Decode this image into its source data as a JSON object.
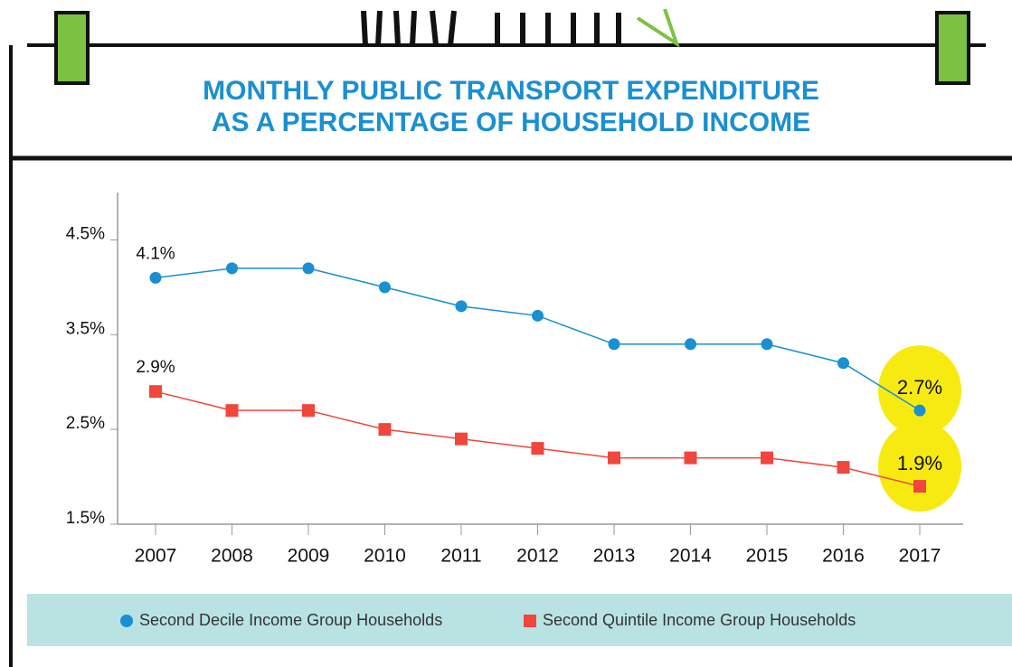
{
  "chart_data": {
    "type": "line",
    "title": [
      "MONTHLY PUBLIC TRANSPORT EXPENDITURE",
      "AS A PERCENTAGE OF HOUSEHOLD INCOME"
    ],
    "categories": [
      "2007",
      "2008",
      "2009",
      "2010",
      "2011",
      "2012",
      "2013",
      "2014",
      "2015",
      "2016",
      "2017"
    ],
    "series": [
      {
        "name": "Second Decile Income Group Households",
        "color": "#1a8fd1",
        "marker": "circle",
        "values": [
          4.1,
          4.2,
          4.2,
          4.0,
          3.8,
          3.7,
          3.4,
          3.4,
          3.4,
          3.2,
          2.7
        ],
        "value_labels": [
          "4.1%",
          null,
          null,
          null,
          null,
          null,
          null,
          null,
          null,
          null,
          "2.7%"
        ]
      },
      {
        "name": "Second Quintile Income Group Households",
        "color": "#f0463c",
        "marker": "square",
        "values": [
          2.9,
          2.7,
          2.7,
          2.5,
          2.4,
          2.3,
          2.2,
          2.2,
          2.2,
          2.1,
          1.9
        ],
        "value_labels": [
          "2.9%",
          null,
          null,
          null,
          null,
          null,
          null,
          null,
          null,
          null,
          "1.9%"
        ]
      }
    ],
    "ylim": [
      1.5,
      5.0
    ],
    "yticks": [
      {
        "value": 1.5,
        "label": "1.5%"
      },
      {
        "value": 2.5,
        "label": "2.5%"
      },
      {
        "value": 3.5,
        "label": "3.5%"
      },
      {
        "value": 4.5,
        "label": "4.5%"
      }
    ],
    "legend": "bottom"
  }
}
